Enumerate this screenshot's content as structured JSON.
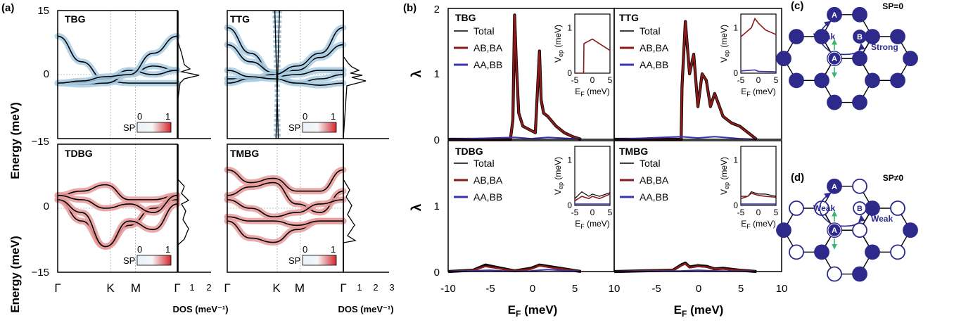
{
  "panel_labels": {
    "a": "(a)",
    "b": "(b)",
    "c": "(c)",
    "d": "(d)"
  },
  "chart_data": [
    {
      "type": "line",
      "panel": "(a)",
      "ylabel": "Energy (meV)",
      "ylim": [
        -15,
        15
      ],
      "y_ticks": [
        "15",
        "0",
        "−15"
      ],
      "x_ticks": [
        "Γ",
        "K",
        "M",
        "Γ"
      ],
      "dos_xlabel": "DOS (meV⁻¹)",
      "dos_ticks": [
        "1",
        "2",
        "3"
      ],
      "colorbar": {
        "label": "SP",
        "min": "0",
        "max": "1"
      },
      "subplots": [
        {
          "name": "TBG",
          "sp_color": "#a9cce3",
          "bands": [
            {
              "x": [
                0,
                0.2,
                0.4,
                0.6,
                0.8,
                1
              ],
              "y": [
                9,
                3,
                -1.5,
                -2,
                -2,
                -2
              ]
            },
            {
              "x": [
                0,
                0.2,
                0.4,
                0.6,
                0.8,
                1
              ],
              "y": [
                -2,
                -2.3,
                -2,
                0,
                2,
                1
              ]
            },
            {
              "x": [
                0,
                0.2,
                0.4,
                0.6,
                0.8,
                1
              ],
              "y": [
                -2,
                -1.8,
                -1,
                1,
                0,
                1
              ]
            },
            {
              "x": [
                0,
                0.2,
                0.4,
                0.6,
                0.8,
                1
              ],
              "y": [
                -2,
                -1.5,
                -0.5,
                0,
                5,
                9
              ]
            }
          ]
        },
        {
          "name": "TTG",
          "sp_color": "#a9cce3",
          "bands": [
            {
              "x": [
                0,
                0.2,
                0.4,
                0.6,
                0.8,
                1
              ],
              "y": [
                11,
                5,
                0,
                -2,
                -1,
                0
              ]
            },
            {
              "x": [
                0,
                0.2,
                0.4,
                0.6,
                0.8,
                1
              ],
              "y": [
                7,
                3,
                0.5,
                1,
                4,
                7
              ]
            },
            {
              "x": [
                0,
                0.2,
                0.4,
                0.6,
                0.8,
                1
              ],
              "y": [
                -1,
                -1,
                -0.5,
                0,
                1,
                1
              ]
            },
            {
              "x": [
                0,
                0.2,
                0.4,
                0.6,
                0.8,
                1
              ],
              "y": [
                -2,
                -1,
                0,
                2,
                5,
                11
              ]
            },
            {
              "x": [
                0,
                0.2,
                0.4,
                0.6,
                0.8,
                1
              ],
              "y": [
                1,
                -0.5,
                -1,
                -2,
                -2.5,
                -2
              ]
            }
          ]
        },
        {
          "name": "TDBG",
          "sp_color": "#e79a9a",
          "bands": [
            {
              "x": [
                0,
                0.2,
                0.4,
                0.6,
                0.8,
                1
              ],
              "y": [
                3,
                4,
                5.5,
                2,
                2,
                3
              ]
            },
            {
              "x": [
                0,
                0.2,
                0.4,
                0.6,
                0.8,
                1
              ],
              "y": [
                2,
                -3,
                -9,
                -4,
                0,
                2
              ]
            },
            {
              "x": [
                0,
                0.2,
                0.4,
                0.6,
                0.8,
                1
              ],
              "y": [
                2,
                -1,
                -9,
                -3,
                -5,
                1
              ]
            },
            {
              "x": [
                0,
                0.2,
                0.4,
                0.6,
                0.8,
                1
              ],
              "y": [
                3,
                2,
                0,
                1,
                -1,
                3
              ]
            }
          ]
        },
        {
          "name": "TMBG",
          "sp_color": "#e79a9a",
          "bands": [
            {
              "x": [
                0,
                0.2,
                0.4,
                0.6,
                0.8,
                1
              ],
              "y": [
                9,
                6,
                7,
                4,
                4,
                9
              ]
            },
            {
              "x": [
                0,
                0.2,
                0.4,
                0.6,
                0.8,
                1
              ],
              "y": [
                3,
                5,
                6,
                1,
                -1,
                4
              ]
            },
            {
              "x": [
                0,
                0.2,
                0.4,
                0.6,
                0.8,
                1
              ],
              "y": [
                2,
                0,
                -2,
                -1,
                1,
                2
              ]
            },
            {
              "x": [
                0,
                0.2,
                0.4,
                0.6,
                0.8,
                1
              ],
              "y": [
                -3,
                -7,
                -8,
                -5,
                -3,
                -3
              ]
            },
            {
              "x": [
                0,
                0.2,
                0.4,
                0.6,
                0.8,
                1
              ],
              "y": [
                -2,
                -3,
                -3,
                -4,
                -3,
                -3
              ]
            }
          ]
        }
      ]
    },
    {
      "type": "line",
      "panel": "(b)",
      "ylabel": "λ",
      "xlabel": "E_F (meV)",
      "xlim": [
        -10,
        10
      ],
      "ylim": [
        0,
        2
      ],
      "x_ticks": [
        "-10",
        "-5",
        "0",
        "5",
        "10"
      ],
      "y_ticks": [
        "0",
        "1",
        "2"
      ],
      "legend": [
        "Total",
        "AB,BA",
        "AA,BB"
      ],
      "inset": {
        "ylabel": "V_ep (meV)",
        "xlabel": "E_F (meV)",
        "x_ticks": [
          "-5",
          "0",
          "5"
        ],
        "y_ticks": [
          "0",
          "1"
        ]
      },
      "subplots": [
        {
          "name": "TBG",
          "total": {
            "x": [
              -10,
              -2.5,
              -2.2,
              -2,
              -1.8,
              -1.5,
              -1,
              0.5,
              1,
              1.2,
              1.5,
              2,
              3,
              4,
              5,
              6
            ],
            "y": [
              0,
              0,
              0.3,
              1.9,
              1.2,
              0.4,
              0.2,
              0.1,
              1.35,
              0.6,
              0.4,
              0.35,
              0.2,
              0.1,
              0.04,
              0
            ]
          },
          "ab": {
            "x": [
              -10,
              -2.5,
              -2.2,
              -2,
              -1.8,
              -1.5,
              -1,
              0.5,
              1,
              1.2,
              1.5,
              2,
              3,
              4,
              5,
              6
            ],
            "y": [
              0,
              0,
              0.3,
              1.9,
              1.2,
              0.4,
              0.2,
              0.1,
              1.35,
              0.6,
              0.4,
              0.35,
              0.2,
              0.1,
              0.04,
              0
            ]
          },
          "aa": {
            "x": [
              -10,
              -2,
              0,
              2,
              5,
              6
            ],
            "y": [
              0,
              0.03,
              0.01,
              0.03,
              0.01,
              0
            ]
          },
          "inset_ab": {
            "x": [
              -5,
              -2.5,
              -2.4,
              0,
              1,
              5
            ],
            "y": [
              0,
              0,
              0.65,
              0.75,
              0.7,
              0.5
            ]
          }
        },
        {
          "name": "TTG",
          "total": {
            "x": [
              -10,
              -2,
              -1.9,
              -1.5,
              -1,
              -0.5,
              0,
              0.5,
              1,
              1.5,
              2,
              3,
              4,
              5,
              7
            ],
            "y": [
              0,
              0,
              0.8,
              1.8,
              1.0,
              1.3,
              0.5,
              1.0,
              0.9,
              0.5,
              0.7,
              0.35,
              0.25,
              0.2,
              0
            ]
          },
          "ab": {
            "x": [
              -10,
              -2,
              -1.9,
              -1.5,
              -1,
              -0.5,
              0,
              0.5,
              1,
              1.5,
              2,
              3,
              4,
              5,
              7
            ],
            "y": [
              0,
              0,
              0.8,
              1.8,
              1.0,
              1.3,
              0.5,
              1.0,
              0.9,
              0.5,
              0.7,
              0.35,
              0.25,
              0.2,
              0
            ]
          },
          "aa": {
            "x": [
              -10,
              -2,
              0,
              2,
              5,
              7
            ],
            "y": [
              0,
              0.04,
              0.02,
              0.04,
              0.01,
              0
            ]
          },
          "inset_ab": {
            "x": [
              -5,
              -2,
              -1,
              0,
              2,
              5
            ],
            "y": [
              0.8,
              1.0,
              1.2,
              1.1,
              0.95,
              0.85
            ]
          },
          "inset_aa": {
            "x": [
              -5,
              -1,
              0,
              5
            ],
            "y": [
              0.05,
              0.07,
              0.04,
              0.03
            ]
          }
        },
        {
          "name": "TDBG",
          "total": {
            "x": [
              -10,
              -7,
              -5.5,
              -4,
              -2,
              0,
              1,
              2,
              3,
              5,
              6
            ],
            "y": [
              0,
              0.02,
              0.1,
              0.06,
              0.01,
              0.05,
              0.1,
              0.08,
              0.06,
              0.02,
              0
            ]
          },
          "ab": {
            "x": [
              -10,
              -7,
              -5.5,
              -4,
              -2,
              0,
              1,
              2,
              3,
              5,
              6
            ],
            "y": [
              0,
              0.02,
              0.08,
              0.05,
              0.01,
              0.04,
              0.09,
              0.07,
              0.05,
              0.02,
              0
            ]
          },
          "aa": {
            "x": [
              -10,
              -5,
              -2,
              0,
              2,
              5,
              6
            ],
            "y": [
              0,
              0.02,
              0,
              0.01,
              0.03,
              0.01,
              0
            ]
          },
          "inset_total": {
            "x": [
              -5,
              -3,
              -1,
              0,
              2,
              5
            ],
            "y": [
              0.15,
              0.3,
              0.2,
              0.25,
              0.2,
              0.28
            ]
          },
          "inset_ab": {
            "x": [
              -5,
              -3,
              -1,
              0,
              2,
              5
            ],
            "y": [
              0.1,
              0.2,
              0.15,
              0.2,
              0.15,
              0.25
            ]
          },
          "inset_aa": {
            "x": [
              -5,
              0,
              5
            ],
            "y": [
              0.03,
              0.03,
              0.03
            ]
          }
        },
        {
          "name": "TMBG",
          "total": {
            "x": [
              -10,
              -3,
              -2,
              -1.5,
              -1,
              0,
              1,
              2,
              3,
              5,
              7
            ],
            "y": [
              0,
              0.02,
              0.1,
              0.13,
              0.07,
              0.09,
              0.08,
              0.04,
              0.05,
              0.02,
              0
            ]
          },
          "ab": {
            "x": [
              -10,
              -3,
              -2,
              -1.5,
              -1,
              0,
              1,
              2,
              3,
              5,
              7
            ],
            "y": [
              0,
              0.02,
              0.09,
              0.12,
              0.06,
              0.08,
              0.07,
              0.04,
              0.04,
              0.02,
              0
            ]
          },
          "aa": {
            "x": [
              -10,
              -2,
              0,
              2,
              7
            ],
            "y": [
              0,
              0.01,
              0.02,
              0.01,
              0
            ]
          },
          "inset_total": {
            "x": [
              -5,
              -3,
              -2,
              0,
              2,
              5
            ],
            "y": [
              0.2,
              0.2,
              0.3,
              0.25,
              0.25,
              0.2
            ]
          },
          "inset_ab": {
            "x": [
              -5,
              -3,
              -2,
              0,
              2,
              5
            ],
            "y": [
              0.15,
              0.2,
              0.27,
              0.22,
              0.2,
              0.18
            ]
          },
          "inset_aa": {
            "x": [
              -5,
              0,
              5
            ],
            "y": [
              0.03,
              0.03,
              0.03
            ]
          }
        }
      ]
    }
  ],
  "lattice": [
    {
      "panel": "(c)",
      "title": "SP=0",
      "site_A": "A",
      "site_B": "B",
      "weak": "Weak",
      "strong": "Strong",
      "right_label": "Strong",
      "b_filled": true
    },
    {
      "panel": "(d)",
      "title": "SP≠0",
      "site_A": "A",
      "site_B": "B",
      "weak": "Weak",
      "strong": "Weak",
      "right_label": "Weak",
      "b_filled": false
    }
  ],
  "colors": {
    "blue_band": "#a9cce3",
    "red_band": "#e79a9a",
    "total": "#000000",
    "ab": "#8b1a1a",
    "aa": "#3a34b0",
    "site": "#2d2a8c",
    "arrow_green": "#3cb371"
  }
}
